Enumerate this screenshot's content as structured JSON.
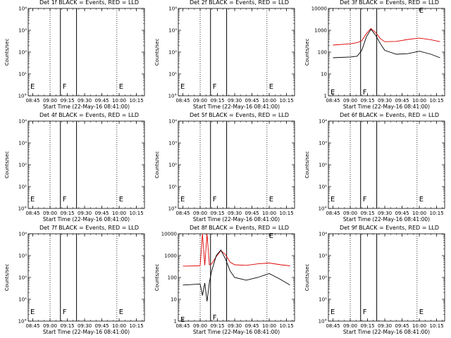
{
  "figure": {
    "ylabel": "Counts/sec",
    "xlabel": "Start Time (22-May-16 08:41:00)",
    "xticks": [
      "08:45",
      "09:00",
      "09:15",
      "09:30",
      "09:45",
      "10:00",
      "10:15"
    ],
    "colors": {
      "events": "#000000",
      "lld": "#dd0000"
    }
  },
  "chart_data": [
    {
      "type": "line",
      "title": "Det 1f BLACK = Events, RED = LLD",
      "yscale": "log",
      "ylim": [
        1,
        10000
      ],
      "yticks": [
        "10°",
        "10¹",
        "10²",
        "10³",
        "10⁴"
      ],
      "xlim": [
        "08:41",
        "10:22"
      ],
      "markers": [
        "E",
        "F",
        "E"
      ],
      "series": []
    },
    {
      "type": "line",
      "title": "Det 2f BLACK = Events, RED = LLD",
      "yscale": "log",
      "ylim": [
        1,
        10000
      ],
      "yticks": [
        "10°",
        "10¹",
        "10²",
        "10³",
        "10⁴"
      ],
      "xlim": [
        "08:41",
        "10:22"
      ],
      "markers": [
        "E",
        "F",
        "E"
      ],
      "series": []
    },
    {
      "type": "line",
      "title": "Det 3f BLACK = Events, RED = LLD",
      "yscale": "log",
      "ylim": [
        1,
        10000
      ],
      "yticks": [
        "1",
        "10",
        "100",
        "1000",
        "10000"
      ],
      "xlim": [
        "08:41",
        "10:22"
      ],
      "markers": [
        "E",
        "F",
        "E"
      ],
      "series": [
        {
          "color": "red",
          "x": [
            "08:45",
            "09:00",
            "09:06",
            "09:10",
            "09:14",
            "09:18",
            "09:22",
            "09:26",
            "09:30",
            "09:40",
            "09:50",
            "10:00",
            "10:10",
            "10:18"
          ],
          "y": [
            210,
            240,
            270,
            330,
            700,
            1200,
            800,
            420,
            300,
            310,
            380,
            440,
            370,
            300
          ]
        },
        {
          "color": "black",
          "x": [
            "08:45",
            "09:00",
            "09:06",
            "09:10",
            "09:14",
            "09:18",
            "09:22",
            "09:26",
            "09:30",
            "09:40",
            "09:50",
            "10:00",
            "10:10",
            "10:18"
          ],
          "y": [
            55,
            60,
            65,
            120,
            500,
            1100,
            600,
            250,
            120,
            80,
            85,
            110,
            80,
            55
          ]
        }
      ]
    },
    {
      "type": "line",
      "title": "Det 4f BLACK = Events, RED = LLD",
      "yscale": "log",
      "ylim": [
        1,
        10000
      ],
      "yticks": [
        "10°",
        "10¹",
        "10²",
        "10³",
        "10⁴"
      ],
      "xlim": [
        "08:41",
        "10:22"
      ],
      "markers": [
        "E",
        "F",
        "E"
      ],
      "series": []
    },
    {
      "type": "line",
      "title": "Det 5f BLACK = Events, RED = LLD",
      "yscale": "log",
      "ylim": [
        1,
        10000
      ],
      "yticks": [
        "10°",
        "10¹",
        "10²",
        "10³",
        "10⁴"
      ],
      "xlim": [
        "08:41",
        "10:22"
      ],
      "markers": [
        "E",
        "F",
        "E"
      ],
      "series": []
    },
    {
      "type": "line",
      "title": "Det 6f BLACK = Events, RED = LLD",
      "yscale": "log",
      "ylim": [
        1,
        10000
      ],
      "yticks": [
        "10°",
        "10¹",
        "10²",
        "10³",
        "10⁴"
      ],
      "xlim": [
        "08:41",
        "10:22"
      ],
      "markers": [
        "E",
        "F",
        "E"
      ],
      "series": []
    },
    {
      "type": "line",
      "title": "Det 7f BLACK = Events, RED = LLD",
      "yscale": "log",
      "ylim": [
        1,
        10000
      ],
      "yticks": [
        "10°",
        "10¹",
        "10²",
        "10³",
        "10⁴"
      ],
      "xlim": [
        "08:41",
        "10:22"
      ],
      "markers": [
        "E",
        "F",
        "E"
      ],
      "series": []
    },
    {
      "type": "line",
      "title": "Det 8f BLACK = Events, RED = LLD",
      "yscale": "log",
      "ylim": [
        1,
        10000
      ],
      "yticks": [
        "1",
        "10",
        "100",
        "1000",
        "10000"
      ],
      "xlim": [
        "08:41",
        "10:22"
      ],
      "markers": [
        "E",
        "F",
        "E"
      ],
      "series": [
        {
          "color": "red",
          "x": [
            "08:45",
            "09:00",
            "09:02",
            "09:04",
            "09:06",
            "09:08",
            "09:10",
            "09:14",
            "09:18",
            "09:22",
            "09:26",
            "09:30",
            "09:40",
            "09:50",
            "10:00",
            "10:10",
            "10:18"
          ],
          "y": [
            330,
            340,
            10000,
            360,
            10000,
            380,
            420,
            900,
            1700,
            1100,
            500,
            380,
            360,
            420,
            460,
            380,
            340
          ]
        },
        {
          "color": "black",
          "x": [
            "08:45",
            "09:00",
            "09:02",
            "09:04",
            "09:06",
            "09:08",
            "09:10",
            "09:14",
            "09:18",
            "09:22",
            "09:26",
            "09:30",
            "09:40",
            "09:50",
            "10:00",
            "10:10",
            "10:18"
          ],
          "y": [
            45,
            50,
            15,
            55,
            8,
            60,
            200,
            1000,
            1800,
            700,
            200,
            100,
            75,
            100,
            150,
            80,
            45
          ]
        }
      ]
    },
    {
      "type": "line",
      "title": "Det 9f BLACK = Events, RED = LLD",
      "yscale": "log",
      "ylim": [
        1,
        10000
      ],
      "yticks": [
        "10°",
        "10¹",
        "10²",
        "10³",
        "10⁴"
      ],
      "xlim": [
        "08:41",
        "10:22"
      ],
      "markers": [
        "E",
        "F",
        "E"
      ],
      "series": []
    }
  ]
}
